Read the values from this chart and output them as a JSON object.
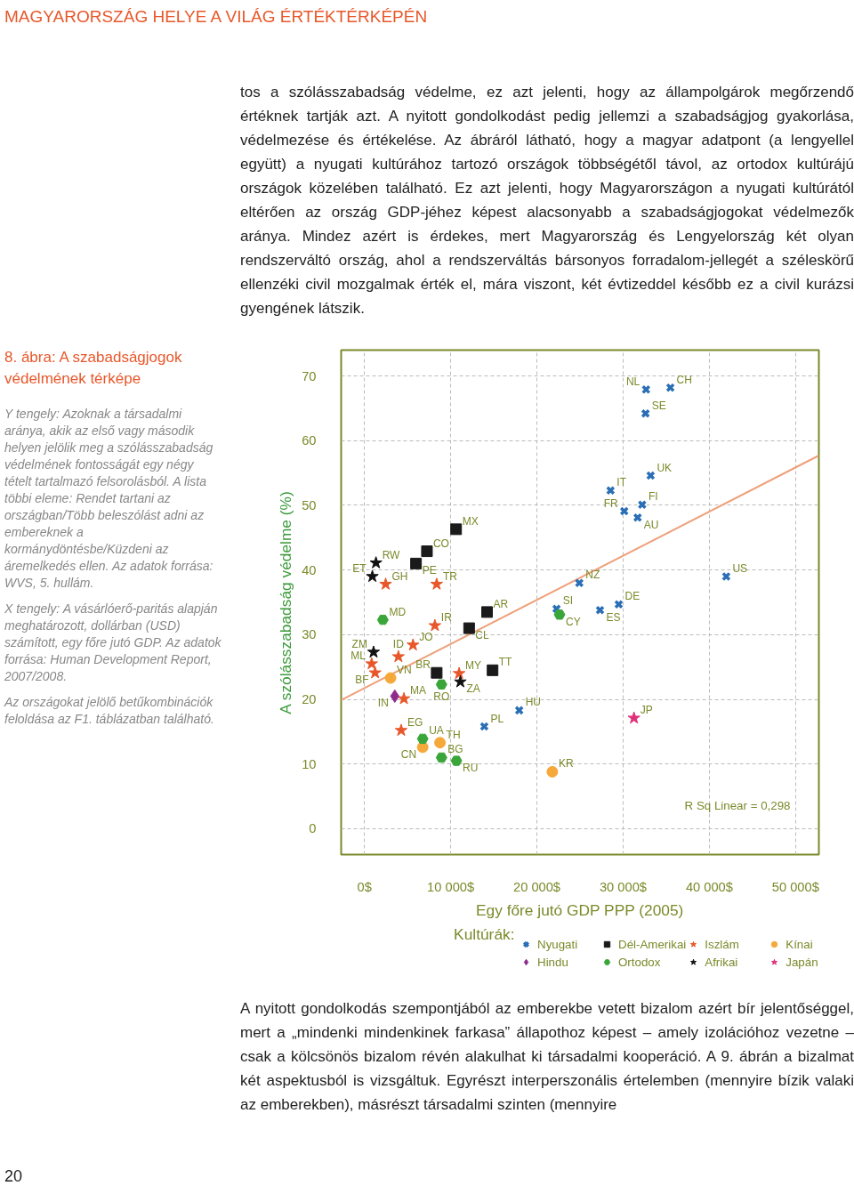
{
  "chart_data": {
    "type": "scatter",
    "title": "8. ábra: A szabadságjogok védelmének térképe",
    "xlabel": "Egy főre jutó GDP PPP (2005)",
    "ylabel": "A szólásszabadság védelme (%)",
    "legend_title": "Kultúrák:",
    "legend": "bottom",
    "grid": true,
    "xlim": [
      -2700,
      52700
    ],
    "ylim": [
      -4,
      74
    ],
    "xticks": [
      {
        "value": 0,
        "label": "0$"
      },
      {
        "value": 10000,
        "label": "10 000$"
      },
      {
        "value": 20000,
        "label": "20 000$"
      },
      {
        "value": 30000,
        "label": "30 000$"
      },
      {
        "value": 40000,
        "label": "40 000$"
      },
      {
        "value": 50000,
        "label": "50 000$"
      }
    ],
    "yticks": [
      0,
      10,
      20,
      30,
      40,
      50,
      60,
      70
    ],
    "annotations": [
      "MAGYARORSZÁG HELYE A VILÁG ÉRTÉKTÉRKÉPÉN",
      "tos a szólásszabadság védelme, ez azt jelenti, hogy az állampolgárok megőrzendő értéknek tartják azt. A nyitott gondolkodást pedig jellemzi a szabadságjog gyakorlása, védelmezése és értékelése. Az ábráról látható, hogy a magyar adatpont (a lengyellel együtt) a nyugati kultúrához tartozó országok többségétől távol, az ortodox kultúrájú országok közelében található. Ez azt jelenti, hogy Magyarországon a nyugati kultúrától eltérően az ország GDP-jéhez képest alacsonyabb a szabadságjogokat védelmezők aránya. Mindez azért is érdekes, mert Magyarország és Lengyelország két olyan rendszerváltó ország, ahol a rendszerváltás bársonyos forradalom-jellegét a széleskörű ellenzéki civil mozgalmak érték el, mára viszont, két évtizeddel később ez a civil kurázsi gyengének látszik.",
      "Y tengely: Azoknak a társadalmi aránya, akik az első vagy második helyen jelölik meg a szólásszabadság védelmének fontosságát egy négy tételt tartalmazó felsorolásból. A lista többi eleme: Rendet tartani az országban/Több beleszólást adni az embereknek a kormánydöntésbe/Küzdeni az áremelkedés ellen. Az adatok forrása: WVS, 5. hullám.",
      "X tengely: A vásárlóerő-paritás alapján meghatározott, dollárban (USD) számított, egy főre jutó GDP. Az adatok forrása: Human Development Report, 2007/2008.",
      "Az országokat jelölő betűkombinációk feloldása az F1. táblázatban található.",
      "R Sq Linear = 0,298",
      "A nyitott gondolkodás szempontjából az emberekbe vetett bizalom azért bír jelentőséggel, mert a „mindenki mindenkinek farkasa” állapothoz képest – amely izolációhoz vezetne – csak a kölcsönös bizalom révén alakulhat ki társadalmi kooperáció. A 9. ábrán a bizalmat két aspektusból is vizsgáltuk. Egyrészt interperszonális értelemben (mennyire bízik valaki az emberekben), másrészt társadalmi szinten (mennyire",
      "20"
    ],
    "series": [
      {
        "name": "Nyugati",
        "color": "#2a6fb5",
        "marker": "cross",
        "x": [
          32660,
          35480,
          32600,
          33190,
          28540,
          32210,
          30130,
          31680,
          24920,
          41960,
          22280,
          27320,
          29490,
          17950,
          13900
        ],
        "values": [
          67.9,
          68.2,
          64.2,
          54.6,
          52.3,
          50.1,
          49.1,
          48.1,
          38.0,
          39.0,
          34.0,
          33.8,
          34.7,
          18.3,
          15.8
        ],
        "value_labels": [
          "NL",
          "CH",
          "SE",
          "UK",
          "IT",
          "FI",
          "FR",
          "AU",
          "NZ",
          "US",
          "SI",
          "ES",
          "DE",
          "HU",
          "PL"
        ]
      },
      {
        "name": "Dél-Amerikai",
        "color": "#1a1a1a",
        "marker": "square",
        "x": [
          10630,
          7250,
          5980,
          14220,
          12140,
          8380,
          14860
        ],
        "values": [
          46.3,
          42.9,
          41.0,
          33.5,
          31.0,
          24.1,
          24.5
        ],
        "value_labels": [
          "MX",
          "CO",
          "PE",
          "AR",
          "CL",
          "BR",
          "TT"
        ]
      },
      {
        "name": "Iszlám",
        "color": "#e8572a",
        "marker": "star",
        "x": [
          2460,
          8380,
          8170,
          5630,
          3940,
          840,
          1240,
          10980,
          4580,
          4260
        ],
        "values": [
          37.8,
          37.8,
          31.4,
          28.4,
          26.6,
          25.5,
          24.1,
          24.0,
          20.1,
          15.2
        ],
        "value_labels": [
          "GH",
          "TR",
          "IR",
          "JO",
          "ID",
          "ML",
          "BF",
          "MY",
          "MA",
          "EG"
        ]
      },
      {
        "name": "Kínai",
        "color": "#f5a93a",
        "marker": "circle",
        "x": [
          3030,
          8760,
          6760,
          21790
        ],
        "values": [
          23.3,
          13.3,
          12.6,
          8.8
        ],
        "value_labels": [
          "VN",
          "TH",
          "CN",
          "KR"
        ]
      },
      {
        "name": "Hindu",
        "color": "#8e2c8e",
        "marker": "diamond",
        "x": [
          3520
        ],
        "values": [
          20.5
        ],
        "value_labels": [
          "IN"
        ]
      },
      {
        "name": "Ortodox",
        "color": "#3aa63a",
        "x": [
          2140,
          8940,
          6760,
          8940,
          10670,
          22630
        ],
        "values": [
          32.3,
          22.3,
          13.9,
          11.0,
          10.5,
          33.1
        ],
        "value_labels": [
          "MD",
          "RO",
          "UA",
          "BG",
          "RU",
          "CY"
        ]
      },
      {
        "name": "Afrikai",
        "color": "#111111",
        "marker": "star",
        "x": [
          1340,
          920,
          1060,
          11120
        ],
        "values": [
          41.1,
          39.0,
          27.3,
          22.7
        ],
        "value_labels": [
          "RW",
          "ET",
          "ZM",
          "ZA"
        ]
      },
      {
        "name": "Japán",
        "color": "#e0307a",
        "marker": "star",
        "x": [
          31260
        ],
        "values": [
          17.1
        ],
        "value_labels": [
          "JP"
        ]
      },
      {
        "type": "line",
        "color": "#eea07a",
        "x": [
          -2700,
          52700
        ],
        "values": [
          19.9,
          57.7
        ]
      }
    ]
  }
}
